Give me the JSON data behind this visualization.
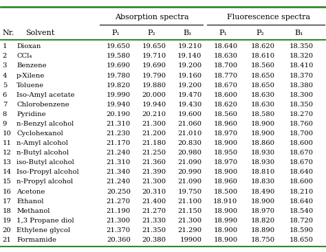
{
  "title_absorption": "Absorption spectra",
  "title_fluorescence": "Fluorescence spectra",
  "col_headers": [
    "Nr.",
    "Solvent",
    "P₁",
    "P₂",
    "B₁",
    "P₁",
    "P₂",
    "B₁"
  ],
  "rows": [
    [
      "1",
      "Dioxan",
      "19.650",
      "19.650",
      "19.210",
      "18.640",
      "18.620",
      "18.350"
    ],
    [
      "2",
      "CCl₄",
      "19.580",
      "19.710",
      "19.140",
      "18.630",
      "18.610",
      "18.320"
    ],
    [
      "3",
      "Benzene",
      "19.690",
      "19.690",
      "19.200",
      "18.700",
      "18.560",
      "18.410"
    ],
    [
      "4",
      "p-Xilene",
      "19.780",
      "19.790",
      "19.160",
      "18.770",
      "18.650",
      "18.370"
    ],
    [
      "5",
      "Toluene",
      "19.820",
      "19.880",
      "19.200",
      "18.670",
      "18.650",
      "18.380"
    ],
    [
      "6",
      "Iso-Amyl acetate",
      "19.990",
      "20.000",
      "19.470",
      "18.600",
      "18.630",
      "18.300"
    ],
    [
      "7",
      "Chlorobenzene",
      "19.940",
      "19.940",
      "19.430",
      "18.620",
      "18.630",
      "18.350"
    ],
    [
      "8",
      "Pyridine",
      "20.190",
      "20.210",
      "19.600",
      "18.560",
      "18.580",
      "18.270"
    ],
    [
      "9",
      "n-Benzyl alcohol",
      "21.310",
      "21.300",
      "21.060",
      "18.960",
      "18.900",
      "18.760"
    ],
    [
      "10",
      "Cyclohexanol",
      "21.230",
      "21.200",
      "21.010",
      "18.970",
      "18.900",
      "18.700"
    ],
    [
      "11",
      "n-Amyl alcohol",
      "21.170",
      "21.180",
      "20.830",
      "18.900",
      "18.860",
      "18.600"
    ],
    [
      "12",
      "n-Butyl alcohol",
      "21.240",
      "21.250",
      "20.980",
      "18.950",
      "18.930",
      "18.670"
    ],
    [
      "13",
      "iso-Butyl alcohol",
      "21.310",
      "21.360",
      "21.090",
      "18.970",
      "18.930",
      "18.670"
    ],
    [
      "14",
      "Iso-Propyl alcohol",
      "21.340",
      "21.390",
      "20.990",
      "18.900",
      "18.810",
      "18.640"
    ],
    [
      "15",
      "n-Propyl alcohol",
      "21.240",
      "21.300",
      "21.090",
      "18.960",
      "18.830",
      "18.600"
    ],
    [
      "16",
      "Acetone",
      "20.250",
      "20.310",
      "19.750",
      "18.500",
      "18.490",
      "18.210"
    ],
    [
      "17",
      "Ethanol",
      "21.270",
      "21.400",
      "21.100",
      "18.910",
      "18.900",
      "18.640"
    ],
    [
      "18",
      "Methanol",
      "21.190",
      "21.270",
      "21.150",
      "18.900",
      "18.970",
      "18.540"
    ],
    [
      "19",
      "1,3 Propane diol",
      "21.300",
      "21.330",
      "21.300",
      "18.990",
      "18.820",
      "18.720"
    ],
    [
      "20",
      "Ethylene glycol",
      "21.370",
      "21.350",
      "21.290",
      "18.900",
      "18.890",
      "18.590"
    ],
    [
      "21",
      "Formamide",
      "20.360",
      "20.380",
      "19900",
      "18.900",
      "18.750",
      "18.650"
    ]
  ],
  "group_separator_after": [
    4,
    7
  ],
  "green_line_color": "#2d8a2d",
  "font_size": 7.2,
  "header_font_size": 8.0
}
